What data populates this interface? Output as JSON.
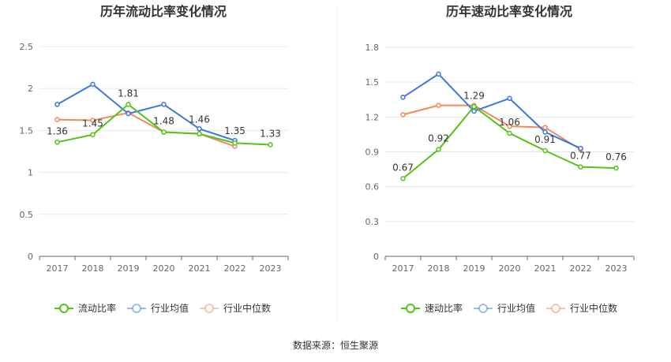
{
  "source_label": "数据来源：恒生聚源",
  "chart_data": [
    {
      "type": "line",
      "title": "历年流动比率变化情况",
      "categories": [
        "2017",
        "2018",
        "2019",
        "2020",
        "2021",
        "2022",
        "2023"
      ],
      "yticks": [
        "0",
        "0.5",
        "1",
        "1.5",
        "2",
        "2.5"
      ],
      "ylim": [
        0,
        2.5
      ],
      "grid": true,
      "legend": "bottom",
      "series": [
        {
          "name": "流动比率",
          "color": "#52c41a",
          "values": [
            1.36,
            1.45,
            1.81,
            1.48,
            1.46,
            1.35,
            1.33
          ],
          "data_labels": [
            "1.36",
            "1.45",
            "1.81",
            "1.48",
            "1.46",
            "1.35",
            "1.33"
          ]
        },
        {
          "name": "行业均值",
          "color": "#3a78e0",
          "values": [
            1.81,
            2.05,
            1.7,
            1.81,
            1.52,
            1.38,
            null
          ]
        },
        {
          "name": "行业中位数",
          "color": "#f08a5d",
          "values": [
            1.63,
            1.62,
            1.71,
            1.48,
            1.46,
            1.31,
            null
          ]
        }
      ]
    },
    {
      "type": "line",
      "title": "历年速动比率变化情况",
      "categories": [
        "2017",
        "2018",
        "2019",
        "2020",
        "2021",
        "2022",
        "2023"
      ],
      "yticks": [
        "0",
        "0.3",
        "0.6",
        "0.9",
        "1.2",
        "1.5",
        "1.8"
      ],
      "ylim": [
        0,
        1.8
      ],
      "grid": true,
      "legend": "bottom",
      "series": [
        {
          "name": "速动比率",
          "color": "#52c41a",
          "values": [
            0.67,
            0.92,
            1.29,
            1.06,
            0.91,
            0.77,
            0.76
          ],
          "data_labels": [
            "0.67",
            "0.92",
            "1.29",
            "1.06",
            "0.91",
            "0.77",
            "0.76"
          ]
        },
        {
          "name": "行业均值",
          "color": "#3a78e0",
          "values": [
            1.37,
            1.57,
            1.25,
            1.36,
            1.07,
            0.93,
            null
          ]
        },
        {
          "name": "行业中位数",
          "color": "#f08a5d",
          "values": [
            1.22,
            1.3,
            1.3,
            1.12,
            1.11,
            0.92,
            null
          ]
        }
      ]
    }
  ]
}
